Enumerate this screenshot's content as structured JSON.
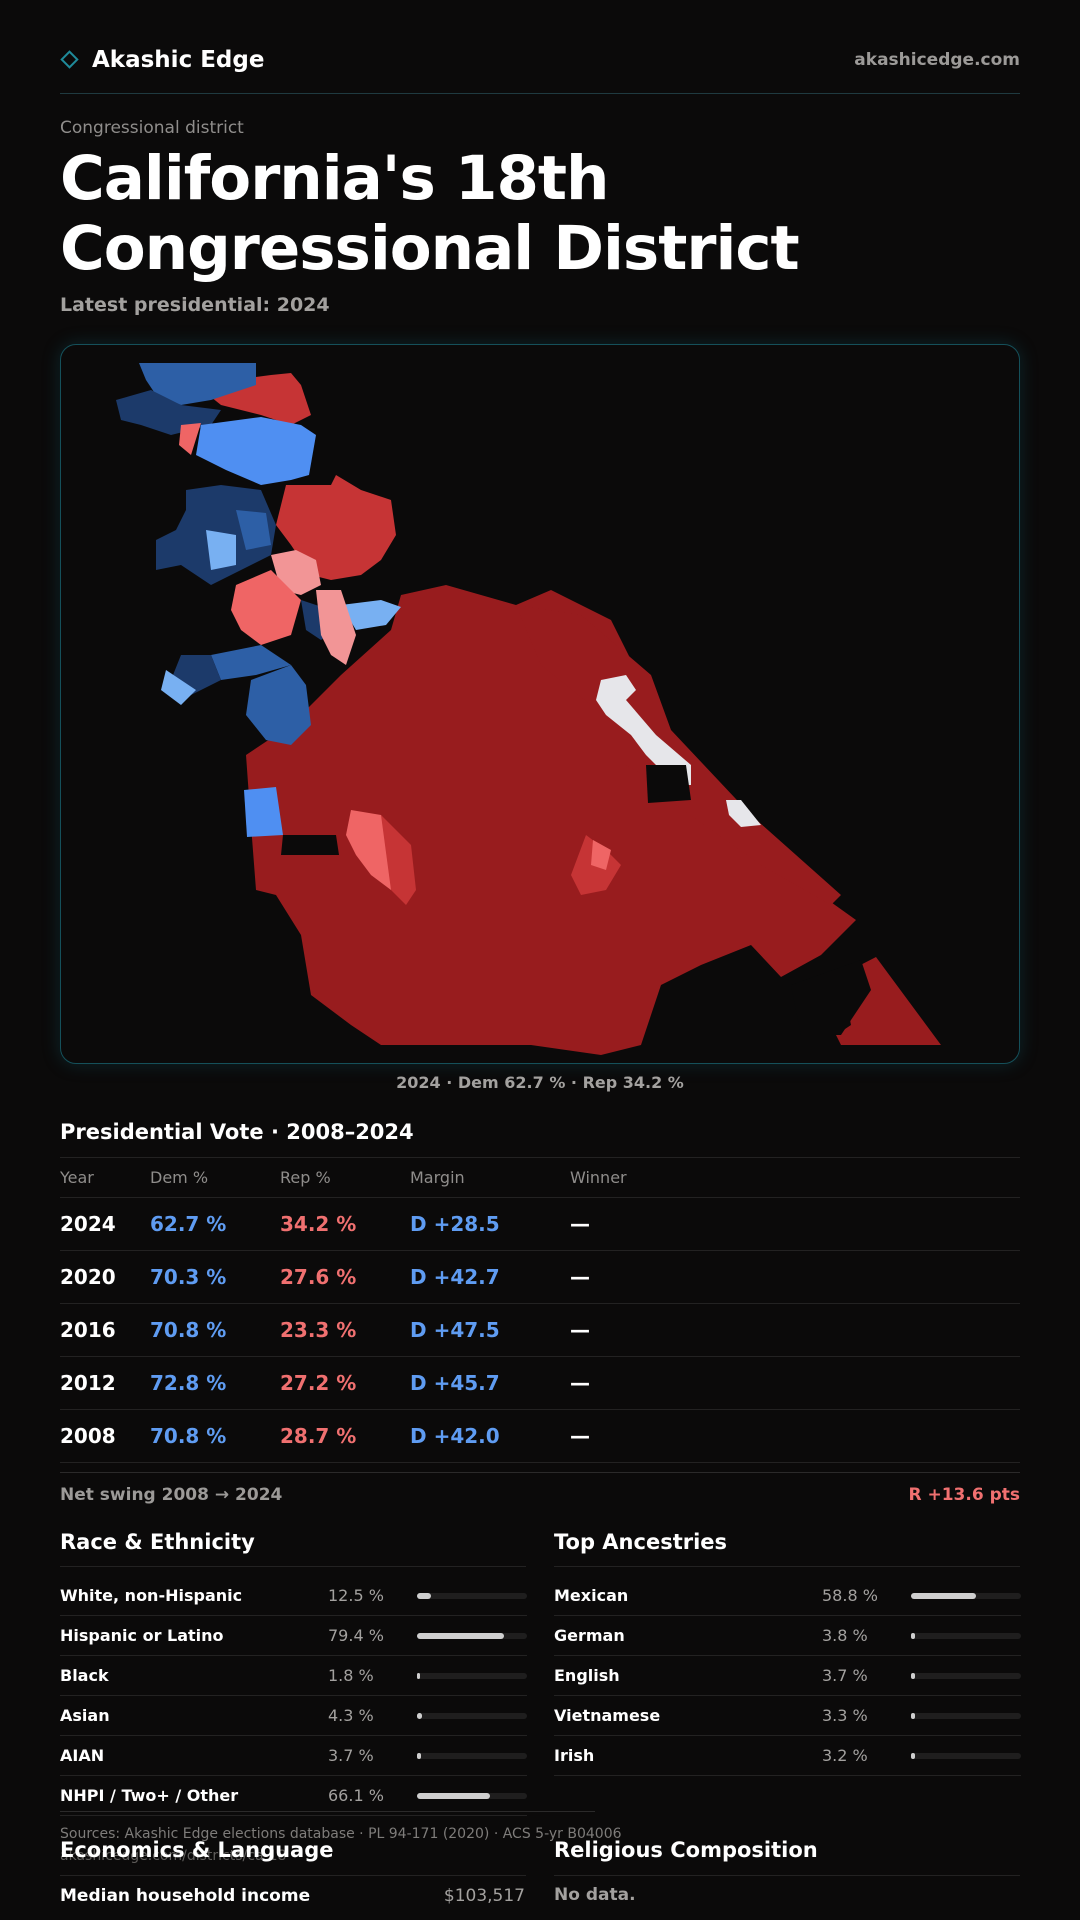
{
  "header": {
    "brand": "Akashic Edge",
    "site": "akashicedge.com"
  },
  "eyebrow": "Congressional district",
  "title": "California's 18th Congressional District",
  "subtitle": "Latest presidential: 2024",
  "map_caption": "2024 · Dem 62.7 % · Rep 34.2 %",
  "vote": {
    "title": "Presidential Vote · 2008–2024",
    "headers": {
      "year": "Year",
      "dem": "Dem %",
      "rep": "Rep %",
      "margin": "Margin",
      "winner": "Winner"
    },
    "rows": [
      {
        "year": "2024",
        "dem": "62.7 %",
        "rep": "34.2 %",
        "margin": "D +28.5",
        "winner": "—"
      },
      {
        "year": "2020",
        "dem": "70.3 %",
        "rep": "27.6 %",
        "margin": "D +42.7",
        "winner": "—"
      },
      {
        "year": "2016",
        "dem": "70.8 %",
        "rep": "23.3 %",
        "margin": "D +47.5",
        "winner": "—"
      },
      {
        "year": "2012",
        "dem": "72.8 %",
        "rep": "27.2 %",
        "margin": "D +45.7",
        "winner": "—"
      },
      {
        "year": "2008",
        "dem": "70.8 %",
        "rep": "28.7 %",
        "margin": "D +42.0",
        "winner": "—"
      }
    ],
    "net_swing_label": "Net swing 2008 → 2024",
    "net_swing_value": "R +13.6 pts"
  },
  "race": {
    "title": "Race & Ethnicity",
    "items": [
      {
        "label": "White, non-Hispanic",
        "value": "12.5 %",
        "pct": 12.5
      },
      {
        "label": "Hispanic or Latino",
        "value": "79.4 %",
        "pct": 79.4
      },
      {
        "label": "Black",
        "value": "1.8 %",
        "pct": 1.8
      },
      {
        "label": "Asian",
        "value": "4.3 %",
        "pct": 4.3
      },
      {
        "label": "AIAN",
        "value": "3.7 %",
        "pct": 3.7
      },
      {
        "label": "NHPI / Two+ / Other",
        "value": "66.1 %",
        "pct": 66.1
      }
    ]
  },
  "ancestry": {
    "title": "Top Ancestries",
    "items": [
      {
        "label": "Mexican",
        "value": "58.8 %",
        "pct": 58.8
      },
      {
        "label": "German",
        "value": "3.8 %",
        "pct": 3.8
      },
      {
        "label": "English",
        "value": "3.7 %",
        "pct": 3.7
      },
      {
        "label": "Vietnamese",
        "value": "3.3 %",
        "pct": 3.3
      },
      {
        "label": "Irish",
        "value": "3.2 %",
        "pct": 3.2
      }
    ]
  },
  "sources": "Sources: Akashic Edge elections database · PL 94-171 (2020) · ACS 5-yr B04006",
  "sources_url": "akashicedge.com/districts/ca-18",
  "economics": {
    "title": "Economics & Language",
    "row_label": "Median household income",
    "row_value": "$103,517"
  },
  "religion": {
    "title": "Religious Composition",
    "empty": "No data."
  },
  "colors": {
    "safe_rep": "#981c1e",
    "likely_rep": "#c63435",
    "lean_rep": "#ef6565",
    "tilt_rep": "#f29596",
    "safe_dem": "#1c3a6a",
    "likely_dem": "#2d5fa6",
    "lean_dem": "#4f8ff2",
    "tilt_dem": "#78b0f2",
    "no_data": "#e6e6ea",
    "accent": "#1f8a9a"
  }
}
